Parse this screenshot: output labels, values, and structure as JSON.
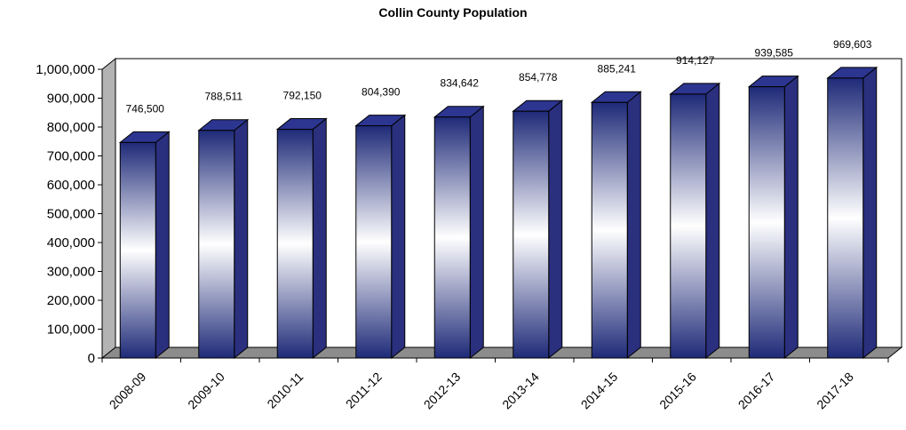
{
  "chart_data": {
    "type": "bar",
    "title": "Collin County Population",
    "xlabel": "",
    "ylabel": "",
    "categories": [
      "2008-09",
      "2009-10",
      "2010-11",
      "2011-12",
      "2012-13",
      "2013-14",
      "2014-15",
      "2015-16",
      "2016-17",
      "2017-18"
    ],
    "values": [
      746500,
      788511,
      792150,
      804390,
      834642,
      854778,
      885241,
      914127,
      939585,
      969603
    ],
    "data_labels": [
      "746,500",
      "788,511",
      "792,150",
      "804,390",
      "834,642",
      "854,778",
      "885,241",
      "914,127",
      "939,585",
      "969,603"
    ],
    "ylim": [
      0,
      1000000
    ],
    "yticks": [
      0,
      100000,
      200000,
      300000,
      400000,
      500000,
      600000,
      700000,
      800000,
      900000,
      1000000
    ],
    "ytick_labels": [
      "0",
      "100,000",
      "200,000",
      "300,000",
      "400,000",
      "500,000",
      "600,000",
      "700,000",
      "800,000",
      "900,000",
      "1,000,000"
    ],
    "grid": false,
    "legend": "none",
    "colors": {
      "bar_dark": "#1e2a78",
      "bar_light": "#ffffff",
      "bar_side": "#2a2f7e",
      "bar_top": "#2c3590",
      "wall": "#b3b3b3",
      "floor": "#8c8c8c"
    }
  }
}
